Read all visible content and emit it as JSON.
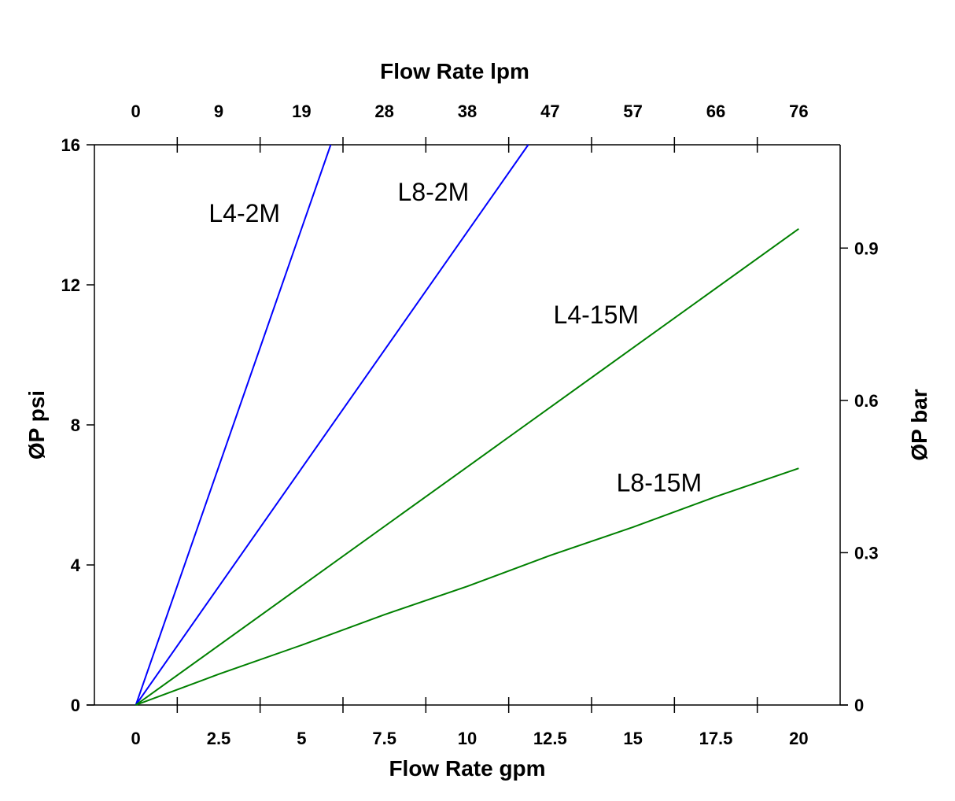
{
  "chart_data": {
    "type": "line",
    "title": "",
    "xlabel": "Flow Rate gpm",
    "x2label": "Flow Rate lpm",
    "ylabel": "ØP psi",
    "y2label": "ØP bar",
    "xlim": [
      -1.25,
      21.25
    ],
    "ylim": [
      0,
      16
    ],
    "x_ticks": [
      0,
      2.5,
      5,
      7.5,
      10,
      12.5,
      15,
      17.5,
      20
    ],
    "x_tick_labels": [
      "0",
      "2.5",
      "5",
      "7.5",
      "10",
      "12.5",
      "15",
      "17.5",
      "20"
    ],
    "x2_tick_labels": [
      "0",
      "9",
      "19",
      "28",
      "38",
      "47",
      "57",
      "66",
      "76"
    ],
    "y_ticks": [
      0,
      4,
      8,
      12,
      16
    ],
    "y_tick_labels": [
      "0",
      "4",
      "8",
      "12",
      "16"
    ],
    "y2_ticks_bar": [
      0,
      0.3,
      0.6,
      0.9
    ],
    "y2_tick_labels": [
      "0",
      "0.3",
      "0.6",
      "0.9"
    ],
    "psi_per_bar": 14.5,
    "grid": false,
    "series": [
      {
        "name": "L4-2M",
        "color": "#0000ff",
        "x": [
          0,
          5.88
        ],
        "y": [
          0,
          16
        ],
        "label_at": [
          2.2,
          13.8
        ]
      },
      {
        "name": "L8-2M",
        "color": "#0000ff",
        "x": [
          0,
          11.84
        ],
        "y": [
          0,
          16
        ],
        "label_at": [
          7.9,
          14.4
        ]
      },
      {
        "name": "L4-15M",
        "color": "#008000",
        "x": [
          0,
          5,
          10,
          15,
          20
        ],
        "y": [
          0,
          3.4,
          6.8,
          10.2,
          13.6
        ],
        "label_at": [
          12.6,
          10.9
        ]
      },
      {
        "name": "L8-15M",
        "color": "#008000",
        "x": [
          0,
          2.5,
          5,
          7.5,
          10,
          12.5,
          15,
          17.5,
          20
        ],
        "y": [
          0,
          0.88,
          1.71,
          2.58,
          3.39,
          4.27,
          5.08,
          5.95,
          6.76
        ],
        "label_at": [
          14.5,
          6.1
        ]
      }
    ]
  }
}
